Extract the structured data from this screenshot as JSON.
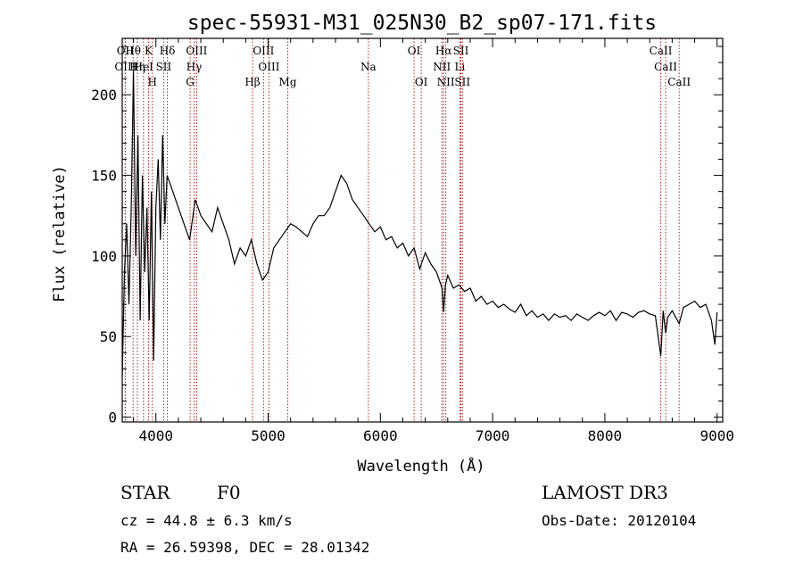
{
  "chart_data": {
    "type": "line",
    "title": "spec-55931-M31_025N30_B2_sp07-171.fits",
    "xlabel": "Wavelength (Å)",
    "ylabel": "Flux (relative)",
    "xlim": [
      3700,
      9050
    ],
    "ylim": [
      -3,
      235
    ],
    "x_ticks": [
      4000,
      5000,
      6000,
      7000,
      8000,
      9000
    ],
    "y_ticks": [
      0,
      50,
      100,
      150,
      200
    ],
    "grid": false,
    "series": [
      {
        "x": [
          3700,
          3720,
          3740,
          3760,
          3780,
          3800,
          3820,
          3840,
          3860,
          3880,
          3900,
          3920,
          3940,
          3960,
          3980,
          4000,
          4020,
          4040,
          4060,
          4080,
          4100,
          4150,
          4200,
          4250,
          4300,
          4350,
          4400,
          4450,
          4500,
          4550,
          4600,
          4650,
          4700,
          4750,
          4800,
          4850,
          4900,
          4950,
          5000,
          5050,
          5100,
          5150,
          5200,
          5250,
          5300,
          5350,
          5400,
          5450,
          5500,
          5550,
          5600,
          5650,
          5700,
          5750,
          5800,
          5850,
          5900,
          5950,
          6000,
          6050,
          6100,
          6150,
          6200,
          6250,
          6300,
          6350,
          6400,
          6450,
          6500,
          6550,
          6563,
          6580,
          6600,
          6650,
          6700,
          6750,
          6800,
          6850,
          6900,
          6950,
          7000,
          7050,
          7100,
          7150,
          7200,
          7250,
          7300,
          7350,
          7400,
          7450,
          7500,
          7550,
          7600,
          7650,
          7700,
          7750,
          7800,
          7850,
          7900,
          7950,
          8000,
          8050,
          8100,
          8150,
          8200,
          8250,
          8300,
          8350,
          8400,
          8450,
          8498,
          8520,
          8542,
          8560,
          8600,
          8662,
          8700,
          8750,
          8800,
          8850,
          8900,
          8950,
          8980,
          9000
        ],
        "y": [
          25,
          90,
          120,
          70,
          130,
          215,
          100,
          175,
          60,
          150,
          90,
          130,
          60,
          140,
          35,
          130,
          160,
          110,
          175,
          120,
          150,
          140,
          130,
          120,
          110,
          135,
          125,
          120,
          115,
          130,
          120,
          110,
          95,
          105,
          100,
          110,
          95,
          85,
          90,
          105,
          110,
          115,
          120,
          118,
          115,
          112,
          120,
          125,
          125,
          130,
          140,
          150,
          145,
          135,
          130,
          125,
          120,
          115,
          118,
          110,
          112,
          105,
          108,
          100,
          105,
          92,
          102,
          95,
          90,
          80,
          65,
          82,
          88,
          80,
          82,
          78,
          80,
          72,
          75,
          70,
          72,
          68,
          70,
          67,
          65,
          70,
          63,
          66,
          62,
          64,
          60,
          64,
          62,
          63,
          60,
          64,
          62,
          60,
          63,
          65,
          63,
          66,
          60,
          65,
          64,
          62,
          65,
          66,
          64,
          63,
          38,
          66,
          52,
          62,
          66,
          58,
          68,
          70,
          72,
          68,
          70,
          60,
          45,
          65
        ]
      }
    ],
    "spectral_lines": [
      {
        "label": "Hθ",
        "x": 3797
      },
      {
        "label": "K",
        "x": 3934
      },
      {
        "label": "Hδ",
        "x": 4102
      },
      {
        "label": "OIII",
        "x": 4363
      },
      {
        "label": "OIII",
        "x": 4959
      },
      {
        "label": "OI",
        "x": 6300
      },
      {
        "label": "Hα",
        "x": 6563
      },
      {
        "label": "SII",
        "x": 6717
      },
      {
        "label": "CaII",
        "x": 8498
      },
      {
        "label": "OII",
        "x": 3727
      },
      {
        "label": "HeI",
        "x": 3889
      },
      {
        "label": "SII",
        "x": 4069
      },
      {
        "label": "Hγ",
        "x": 4340
      },
      {
        "label": "OIII",
        "x": 5007
      },
      {
        "label": "Na",
        "x": 5893
      },
      {
        "label": "NII",
        "x": 6548
      },
      {
        "label": "Li",
        "x": 6708
      },
      {
        "label": "CaII",
        "x": 8542
      },
      {
        "label": "OIII",
        "x": 3727
      },
      {
        "label": "Hη",
        "x": 3835
      },
      {
        "label": "H",
        "x": 3968
      },
      {
        "label": "G",
        "x": 4305
      },
      {
        "label": "Hβ",
        "x": 4861
      },
      {
        "label": "Mg",
        "x": 5175
      },
      {
        "label": "OI",
        "x": 6364
      },
      {
        "label": "NII",
        "x": 6583
      },
      {
        "label": "SII",
        "x": 6731
      },
      {
        "label": "CaII",
        "x": 8662
      }
    ],
    "spectral_line_color": "#b22222",
    "line_color": "#000000"
  },
  "info": {
    "object_class": "STAR",
    "subclass": "F0",
    "survey": "LAMOST DR3",
    "cz": "cz = 44.8 ± 6.3 km/s",
    "obs_date": "Obs-Date: 20120104",
    "coords": "RA =  26.59398, DEC =  28.01342"
  }
}
